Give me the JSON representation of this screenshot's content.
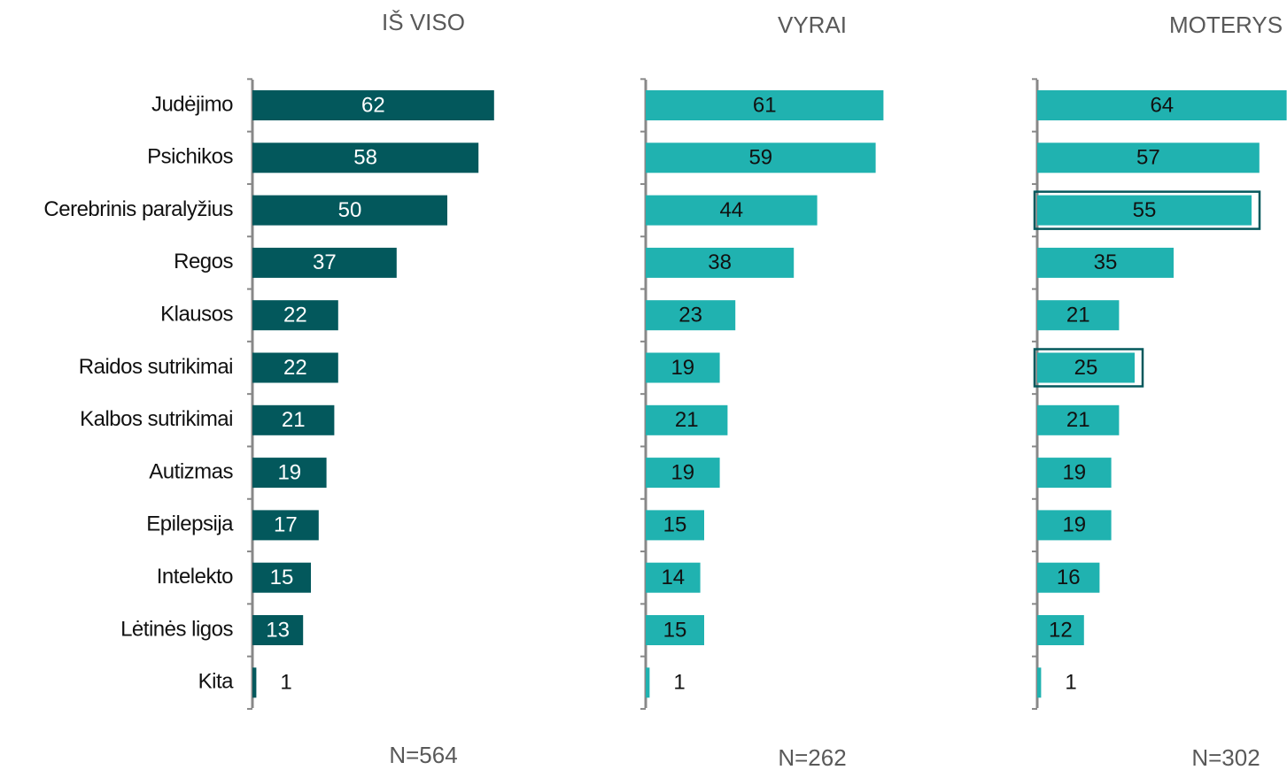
{
  "chart_data": {
    "type": "bar",
    "categories": [
      "Judėjimo",
      "Psichikos",
      "Cerebrinis paralyžius",
      "Regos",
      "Klausos",
      "Raidos sutrikimai",
      "Kalbos sutrikimai",
      "Autizmas",
      "Epilepsija",
      "Intelekto",
      "Lėtinės ligos",
      "Kita"
    ],
    "series": [
      {
        "name": "IŠ VISO",
        "note": "N=564",
        "color": "#03585c",
        "label_color": "#ffffff",
        "values": [
          62,
          58,
          50,
          37,
          22,
          22,
          21,
          19,
          17,
          15,
          13,
          1
        ]
      },
      {
        "name": "VYRAI",
        "note": "N=262",
        "color": "#20b2b0",
        "label_color": "#111111",
        "values": [
          61,
          59,
          44,
          38,
          23,
          19,
          21,
          19,
          15,
          14,
          15,
          1
        ]
      },
      {
        "name": "MOTERYS",
        "note": "N=302",
        "color": "#20b2b0",
        "label_color": "#111111",
        "values": [
          64,
          57,
          55,
          35,
          21,
          25,
          21,
          19,
          19,
          16,
          12,
          1
        ],
        "highlighted": [
          2,
          5
        ]
      }
    ]
  }
}
